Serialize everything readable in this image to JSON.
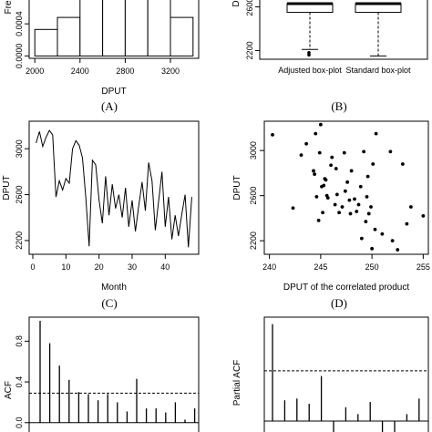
{
  "chart_data": [
    {
      "type": "histogram",
      "caption": "(A)",
      "xlabel": "DPUT",
      "ylabel": "Fre",
      "x_ticks": [
        "2000",
        "2400",
        "2800",
        "3200"
      ],
      "y_ticks": [
        "0.0000",
        "0.0004"
      ],
      "bins": [
        {
          "from": 2000,
          "to": 2200,
          "density": 0.00033
        },
        {
          "from": 2200,
          "to": 2400,
          "density": 0.00048
        },
        {
          "from": 2400,
          "to": 2600,
          "density": 0.00075
        },
        {
          "from": 2600,
          "to": 2800,
          "density": 0.00075
        },
        {
          "from": 2800,
          "to": 3000,
          "density": 0.00075
        },
        {
          "from": 3000,
          "to": 3200,
          "density": 0.00075
        },
        {
          "from": 3200,
          "to": 3400,
          "density": 0.00048
        }
      ],
      "xlim": [
        1950,
        3450
      ],
      "ylim": [
        -3e-05,
        0.00072
      ]
    },
    {
      "type": "boxplot",
      "caption": "(B)",
      "ylabel": "D",
      "y_ticks": [
        "2200",
        "2600"
      ],
      "categories": [
        "Adjusted box-plot",
        "Standard box-plot"
      ],
      "boxes": [
        {
          "name": "Adjusted box-plot",
          "q1": 2550,
          "median": 2630,
          "q3": 2630,
          "whisker_low": 2210,
          "outliers": [
            2160,
            2180
          ]
        },
        {
          "name": "Standard box-plot",
          "q1": 2550,
          "median": 2630,
          "q3": 2630,
          "whisker_low": 2150,
          "outliers": []
        }
      ],
      "ylim": [
        2120,
        2680
      ]
    },
    {
      "type": "line",
      "caption": "(C)",
      "xlabel": "Month",
      "ylabel": "DPUT",
      "x_ticks": [
        "0",
        "10",
        "20",
        "30",
        "40"
      ],
      "y_ticks": [
        "2200",
        "2600",
        "3000"
      ],
      "x": [
        1,
        2,
        3,
        4,
        5,
        6,
        7,
        8,
        9,
        10,
        11,
        12,
        13,
        14,
        15,
        16,
        17,
        18,
        19,
        20,
        21,
        22,
        23,
        24,
        25,
        26,
        27,
        28,
        29,
        30,
        31,
        32,
        33,
        34,
        35,
        36,
        37,
        38,
        39,
        40,
        41,
        42,
        43,
        44,
        45,
        46,
        47,
        48
      ],
      "values": [
        3050,
        3150,
        3020,
        3100,
        3160,
        3120,
        2580,
        2720,
        2640,
        2740,
        2700,
        3000,
        3070,
        3030,
        2920,
        2580,
        2150,
        2900,
        2860,
        2550,
        2350,
        2760,
        2420,
        2690,
        2480,
        2600,
        2400,
        2660,
        2320,
        2550,
        2280,
        2500,
        2710,
        2460,
        2880,
        2720,
        2290,
        2540,
        2800,
        2320,
        2580,
        2210,
        2420,
        2240,
        2430,
        2600,
        2140,
        2580
      ],
      "xlim": [
        0,
        49
      ],
      "ylim": [
        2080,
        3240
      ]
    },
    {
      "type": "scatter",
      "caption": "(D)",
      "xlabel": "DPUT of the correlated product",
      "ylabel": "DPUT",
      "x_ticks": [
        "240",
        "245",
        "250",
        "255"
      ],
      "y_ticks": [
        "2200",
        "2600",
        "3000"
      ],
      "points": [
        [
          240.3,
          3140
        ],
        [
          242.3,
          2490
        ],
        [
          243.1,
          2960
        ],
        [
          243.6,
          3060
        ],
        [
          244.3,
          2820
        ],
        [
          244.4,
          2790
        ],
        [
          244.5,
          3150
        ],
        [
          244.6,
          2590
        ],
        [
          244.8,
          2380
        ],
        [
          244.9,
          2980
        ],
        [
          245.0,
          3230
        ],
        [
          245.1,
          2680
        ],
        [
          245.2,
          2450
        ],
        [
          245.3,
          2690
        ],
        [
          245.4,
          2750
        ],
        [
          245.5,
          2740
        ],
        [
          245.6,
          2600
        ],
        [
          245.7,
          2580
        ],
        [
          246.0,
          2870
        ],
        [
          246.1,
          2940
        ],
        [
          246.4,
          2520
        ],
        [
          246.5,
          2840
        ],
        [
          246.6,
          2610
        ],
        [
          246.8,
          2450
        ],
        [
          247.1,
          2500
        ],
        [
          247.3,
          2980
        ],
        [
          247.4,
          2640
        ],
        [
          247.6,
          2720
        ],
        [
          247.8,
          2560
        ],
        [
          247.9,
          2440
        ],
        [
          248.0,
          2820
        ],
        [
          248.3,
          2570
        ],
        [
          248.5,
          2460
        ],
        [
          248.7,
          2520
        ],
        [
          248.9,
          2680
        ],
        [
          249.0,
          2220
        ],
        [
          249.2,
          2990
        ],
        [
          249.4,
          2370
        ],
        [
          249.5,
          2590
        ],
        [
          249.6,
          2770
        ],
        [
          249.7,
          2440
        ],
        [
          249.9,
          2500
        ],
        [
          250.0,
          2130
        ],
        [
          250.1,
          2880
        ],
        [
          250.3,
          2300
        ],
        [
          250.4,
          3150
        ],
        [
          251.0,
          2260
        ],
        [
          251.8,
          2990
        ],
        [
          252.0,
          2200
        ],
        [
          252.5,
          2120
        ],
        [
          253.0,
          2880
        ],
        [
          253.4,
          2350
        ],
        [
          253.8,
          2500
        ],
        [
          255.0,
          2420
        ]
      ],
      "xlim": [
        239.5,
        255.5
      ],
      "ylim": [
        2080,
        3260
      ]
    },
    {
      "type": "bar",
      "caption": "",
      "xlabel": "",
      "ylabel": "ACF",
      "y_ticks": [
        "0.0",
        "0.4",
        "0.8"
      ],
      "values": [
        1.0,
        0.78,
        0.56,
        0.42,
        0.3,
        0.28,
        0.22,
        0.28,
        0.2,
        0.11,
        0.43,
        0.14,
        0.14,
        0.1,
        0.2,
        0.03,
        0.14
      ],
      "ci": 0.29,
      "ylim": [
        -0.02,
        1.0
      ]
    },
    {
      "type": "bar",
      "caption": "",
      "xlabel": "",
      "ylabel": "Partial ACF",
      "values": [
        0.56,
        0.12,
        0.13,
        0.1,
        0.26,
        -0.12,
        0.08,
        0.04,
        0.11,
        -0.1,
        -0.18,
        0.04,
        0.13
      ],
      "ci": 0.29,
      "ylim": [
        -0.2,
        0.6
      ]
    }
  ]
}
